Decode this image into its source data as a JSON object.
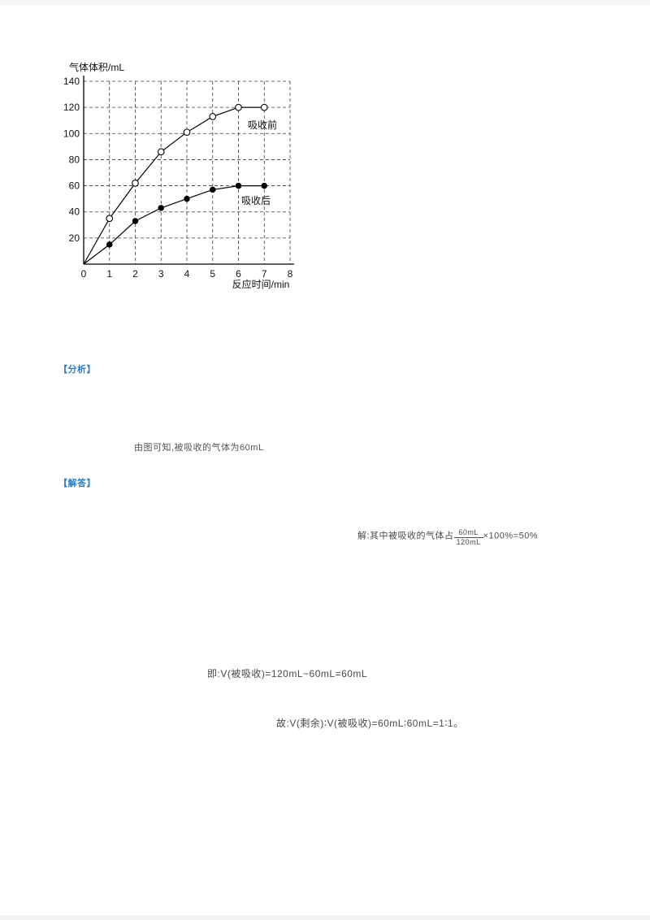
{
  "page": {
    "background": "#ffffff",
    "accent_blue": "#2b7cc4"
  },
  "chart_data": {
    "type": "line",
    "y_axis_title": "气体体积/mL",
    "x_axis_title": "反应时间/min",
    "x": [
      0,
      1,
      2,
      3,
      4,
      5,
      6,
      7
    ],
    "x_ticks": [
      0,
      1,
      2,
      3,
      4,
      5,
      6,
      7,
      8
    ],
    "y_ticks": [
      0,
      20,
      40,
      60,
      80,
      100,
      120,
      140
    ],
    "xlim": [
      0,
      8
    ],
    "ylim": [
      0,
      140
    ],
    "grid": "dashed",
    "legend_position": "inline-labels",
    "series": [
      {
        "name": "吸收前",
        "marker": "open-circle",
        "values": [
          0,
          35,
          62,
          86,
          101,
          113,
          120,
          120
        ]
      },
      {
        "name": "吸收后",
        "marker": "filled-circle",
        "values": [
          0,
          15,
          33,
          43,
          50,
          57,
          60,
          60
        ]
      }
    ]
  },
  "solution": {
    "analysis_tag": "【分析】",
    "analysis_note": "由图可知,被吸收的气体为60mL",
    "answer_tag": "【解答】",
    "formula": {
      "prefix": "解:其中被吸收的气体占",
      "numerator": "60mL",
      "denominator": "120mL",
      "suffix": "×100%=50%"
    },
    "equation1": "即:V(被吸收)=120mL−60mL=60mL",
    "equation2": "故:V(剩余)∶V(被吸收)=60mL∶60mL=1∶1。"
  }
}
